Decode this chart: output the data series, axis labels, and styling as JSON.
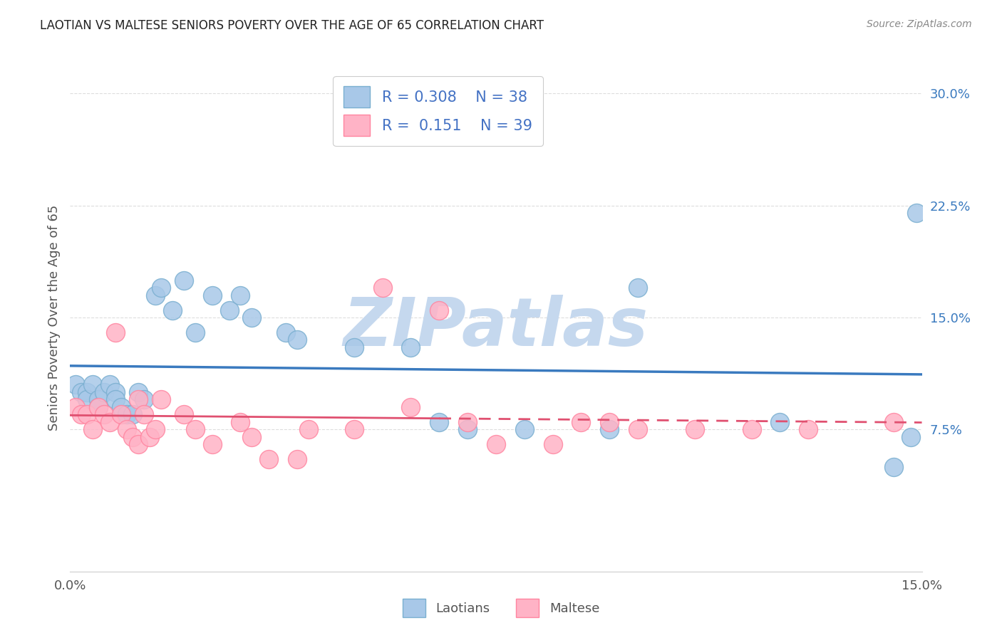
{
  "title": "LAOTIAN VS MALTESE SENIORS POVERTY OVER THE AGE OF 65 CORRELATION CHART",
  "source": "Source: ZipAtlas.com",
  "ylabel": "Seniors Poverty Over the Age of 65",
  "xlim": [
    0.0,
    0.15
  ],
  "ylim": [
    -0.02,
    0.32
  ],
  "ytick_right_labels": [
    "7.5%",
    "15.0%",
    "22.5%",
    "30.0%"
  ],
  "ytick_right_values": [
    0.075,
    0.15,
    0.225,
    0.3
  ],
  "laotian_R": "0.308",
  "laotian_N": "38",
  "maltese_R": "0.151",
  "maltese_N": "39",
  "laotian_color": "#a8c8e8",
  "maltese_color": "#ffb3c6",
  "laotian_scatter_edge": "#7aafd0",
  "maltese_scatter_edge": "#ff85a0",
  "laotian_line_color": "#3a7abf",
  "maltese_line_color": "#e05070",
  "watermark_color": "#c5d8ee",
  "background_color": "#ffffff",
  "grid_color": "#dddddd",
  "laotian_x": [
    0.001,
    0.002,
    0.003,
    0.003,
    0.004,
    0.005,
    0.005,
    0.006,
    0.007,
    0.008,
    0.008,
    0.009,
    0.01,
    0.011,
    0.012,
    0.013,
    0.015,
    0.016,
    0.018,
    0.02,
    0.022,
    0.025,
    0.028,
    0.03,
    0.032,
    0.038,
    0.04,
    0.05,
    0.06,
    0.065,
    0.07,
    0.08,
    0.095,
    0.1,
    0.125,
    0.145,
    0.148,
    0.149
  ],
  "laotian_y": [
    0.105,
    0.1,
    0.1,
    0.095,
    0.105,
    0.095,
    0.09,
    0.1,
    0.105,
    0.1,
    0.095,
    0.09,
    0.085,
    0.085,
    0.1,
    0.095,
    0.165,
    0.17,
    0.155,
    0.175,
    0.14,
    0.165,
    0.155,
    0.165,
    0.15,
    0.14,
    0.135,
    0.13,
    0.13,
    0.08,
    0.075,
    0.075,
    0.075,
    0.17,
    0.08,
    0.05,
    0.07,
    0.22
  ],
  "maltese_x": [
    0.001,
    0.002,
    0.003,
    0.004,
    0.005,
    0.006,
    0.007,
    0.008,
    0.009,
    0.01,
    0.011,
    0.012,
    0.012,
    0.013,
    0.014,
    0.015,
    0.016,
    0.02,
    0.022,
    0.025,
    0.03,
    0.032,
    0.035,
    0.04,
    0.042,
    0.05,
    0.055,
    0.06,
    0.065,
    0.07,
    0.075,
    0.085,
    0.09,
    0.095,
    0.1,
    0.11,
    0.12,
    0.13,
    0.145
  ],
  "maltese_y": [
    0.09,
    0.085,
    0.085,
    0.075,
    0.09,
    0.085,
    0.08,
    0.14,
    0.085,
    0.075,
    0.07,
    0.065,
    0.095,
    0.085,
    0.07,
    0.075,
    0.095,
    0.085,
    0.075,
    0.065,
    0.08,
    0.07,
    0.055,
    0.055,
    0.075,
    0.075,
    0.17,
    0.09,
    0.155,
    0.08,
    0.065,
    0.065,
    0.08,
    0.08,
    0.075,
    0.075,
    0.075,
    0.075,
    0.08
  ]
}
